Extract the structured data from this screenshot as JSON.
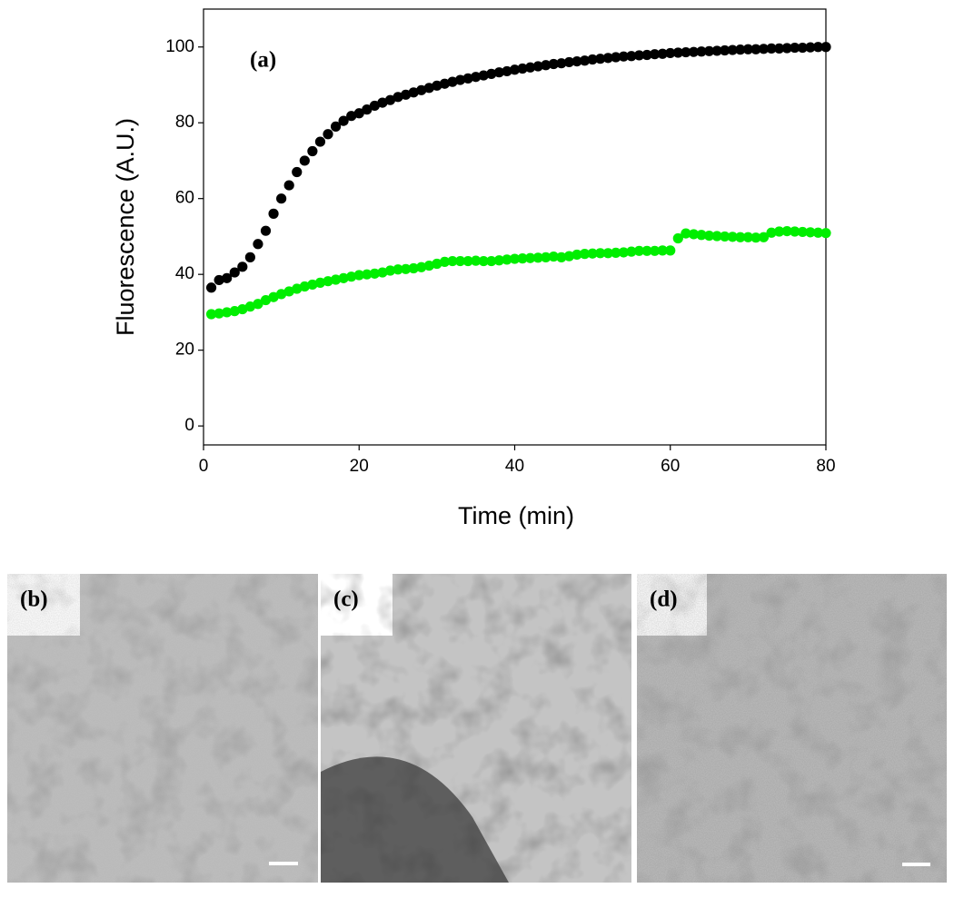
{
  "chart_data": {
    "type": "scatter",
    "annotation": "(a)",
    "xlabel": "Time (min)",
    "ylabel": "Fluorescence (A.U.)",
    "xlim": [
      0,
      80
    ],
    "ylim": [
      -5,
      110
    ],
    "xticks": [
      0,
      20,
      40,
      60,
      80
    ],
    "yticks": [
      0,
      20,
      40,
      60,
      80,
      100
    ],
    "x": [
      1,
      2,
      3,
      4,
      5,
      6,
      7,
      8,
      9,
      10,
      11,
      12,
      13,
      14,
      15,
      16,
      17,
      18,
      19,
      20,
      21,
      22,
      23,
      24,
      25,
      26,
      27,
      28,
      29,
      30,
      31,
      32,
      33,
      34,
      35,
      36,
      37,
      38,
      39,
      40,
      41,
      42,
      43,
      44,
      45,
      46,
      47,
      48,
      49,
      50,
      51,
      52,
      53,
      54,
      55,
      56,
      57,
      58,
      59,
      60,
      61,
      62,
      63,
      64,
      65,
      66,
      67,
      68,
      69,
      70,
      71,
      72,
      73,
      74,
      75,
      76,
      77,
      78,
      79,
      80
    ],
    "series": [
      {
        "color": "#000000",
        "values": [
          36.5,
          38.5,
          39,
          40.5,
          42,
          44.5,
          48,
          51.5,
          56,
          60,
          63.5,
          67,
          70,
          72.5,
          75,
          77,
          79,
          80.5,
          81.8,
          82.5,
          83.5,
          84.5,
          85.3,
          86,
          86.8,
          87.4,
          88,
          88.6,
          89.2,
          89.8,
          90.3,
          90.8,
          91.3,
          91.7,
          92.1,
          92.5,
          92.9,
          93.3,
          93.6,
          94,
          94.3,
          94.6,
          94.9,
          95.2,
          95.5,
          95.7,
          96,
          96.2,
          96.4,
          96.7,
          96.9,
          97.1,
          97.3,
          97.5,
          97.6,
          97.8,
          97.9,
          98.1,
          98.2,
          98.4,
          98.5,
          98.6,
          98.7,
          98.8,
          98.9,
          99,
          99.1,
          99.2,
          99.3,
          99.4,
          99.4,
          99.5,
          99.6,
          99.6,
          99.7,
          99.8,
          99.8,
          99.9,
          100,
          100
        ]
      },
      {
        "color": "#00ee00",
        "values": [
          29.5,
          29.7,
          30,
          30.3,
          30.8,
          31.5,
          32.2,
          33.2,
          34,
          34.8,
          35.5,
          36.2,
          36.8,
          37.3,
          37.8,
          38.2,
          38.6,
          39,
          39.4,
          39.8,
          40,
          40.2,
          40.5,
          41,
          41.3,
          41.4,
          41.6,
          41.9,
          42.3,
          42.8,
          43.3,
          43.5,
          43.5,
          43.5,
          43.6,
          43.5,
          43.5,
          43.7,
          43.9,
          44.1,
          44.2,
          44.3,
          44.4,
          44.5,
          44.7,
          44.5,
          44.8,
          45.2,
          45.4,
          45.5,
          45.6,
          45.6,
          45.7,
          45.8,
          46,
          46.2,
          46.2,
          46.2,
          46.3,
          46.3,
          49.5,
          50.8,
          50.6,
          50.4,
          50.2,
          50.1,
          50,
          49.9,
          49.8,
          49.8,
          49.7,
          49.8,
          51,
          51.3,
          51.4,
          51.3,
          51.2,
          51.1,
          51,
          50.9
        ]
      }
    ]
  },
  "panels": [
    "(b)",
    "(c)",
    "(d)"
  ]
}
